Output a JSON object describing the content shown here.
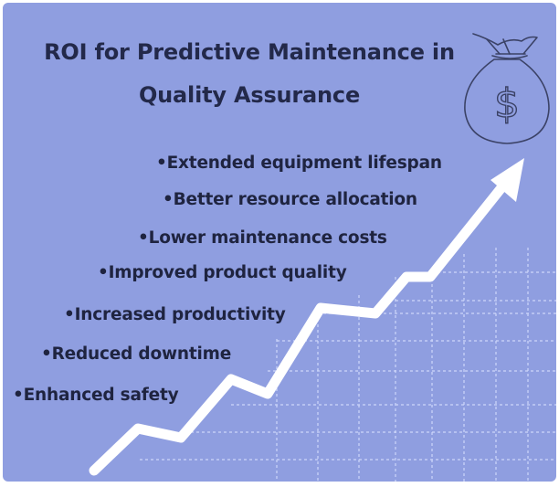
{
  "title": {
    "line1": "ROI for Predictive Maintenance in",
    "line2": "Quality Assurance"
  },
  "benefits": [
    "•Extended equipment lifespan",
    "•Better resource allocation",
    "•Lower maintenance costs",
    "•Improved product quality",
    "•Increased productivity",
    "•Reduced downtime",
    "•Enhanced safety"
  ],
  "icons": {
    "money_bag": "money-bag-icon",
    "currency_symbol": "$"
  },
  "colors": {
    "background": "#8f9ee0",
    "text": "#1f2440",
    "arrow": "#ffffff",
    "grid": "#d9e0ff",
    "icon_stroke": "#3b4266"
  }
}
